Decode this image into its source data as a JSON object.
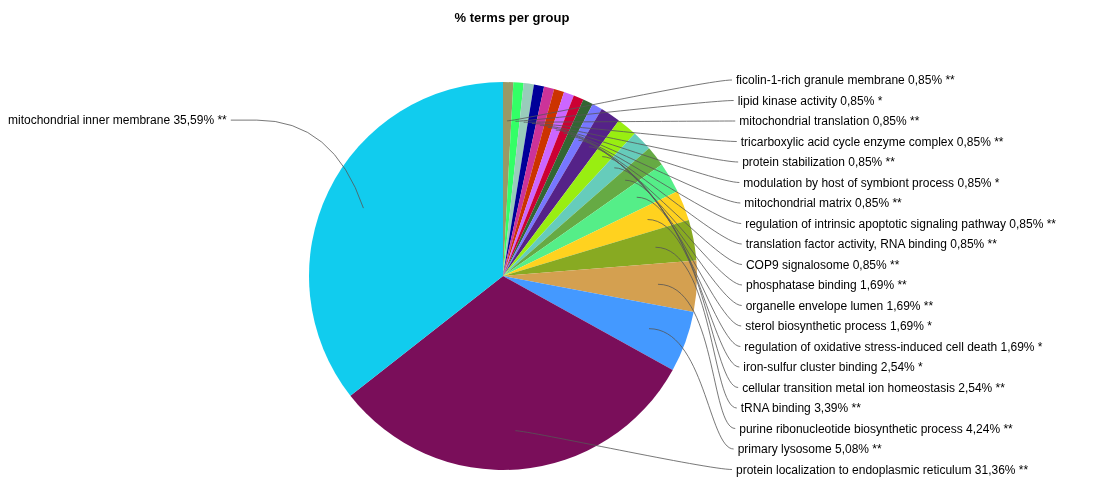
{
  "chart_data": {
    "type": "pie",
    "title": "% terms per group",
    "categories": [
      "ficolin-1-rich granule membrane",
      "lipid kinase activity",
      "mitochondrial translation",
      "tricarboxylic acid cycle enzyme complex",
      "protein stabilization",
      "modulation by host of symbiont process",
      "mitochondrial matrix",
      "regulation of intrinsic apoptotic signaling pathway",
      "translation factor activity, RNA binding",
      "COP9 signalosome",
      "phosphatase binding",
      "organelle envelope lumen",
      "sterol biosynthetic process",
      "regulation of oxidative stress-induced cell death",
      "iron-sulfur cluster binding",
      "cellular transition metal ion homeostasis",
      "tRNA binding",
      "purine ribonucleotide biosynthetic process",
      "primary lysosome",
      "protein localization to endoplasmic reticulum",
      "mitochondrial inner membrane"
    ],
    "values": [
      0.85,
      0.85,
      0.85,
      0.85,
      0.85,
      0.85,
      0.85,
      0.85,
      0.85,
      0.85,
      1.69,
      1.69,
      1.69,
      1.69,
      2.54,
      2.54,
      3.39,
      4.24,
      5.08,
      31.36,
      35.59
    ],
    "value_labels": [
      "0,85% **",
      "0,85% *",
      "0,85% **",
      "0,85% **",
      "0,85% **",
      "0,85% *",
      "0,85% **",
      "0,85% **",
      "0,85% **",
      "0,85% **",
      "1,69% **",
      "1,69% **",
      "1,69% *",
      "1,69% *",
      "2,54% *",
      "2,54% **",
      "3,39% **",
      "4,24% **",
      "5,08% **",
      "31,36% **",
      "35,59% **"
    ],
    "colors": [
      "#999966",
      "#33ff66",
      "#99ccbb",
      "#000099",
      "#cc3399",
      "#cc3300",
      "#cc66ff",
      "#cc0033",
      "#336633",
      "#7777ff",
      "#552288",
      "#99ee11",
      "#66ccbb",
      "#66aa44",
      "#55ee88",
      "#ffd21f",
      "#88aa22",
      "#d4a050",
      "#4499ff",
      "#7a0e5a",
      "#11ccee"
    ]
  }
}
